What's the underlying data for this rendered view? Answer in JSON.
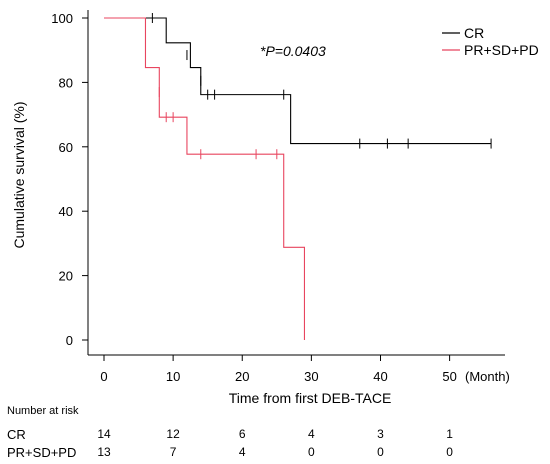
{
  "chart_data": {
    "type": "line",
    "subtype": "kaplan-meier",
    "ylabel": "Cumulative survival (%)",
    "xlabel": "Time from first DEB-TACE",
    "xunit": "(Month)",
    "xlim": [
      0,
      57
    ],
    "ylim": [
      0,
      100
    ],
    "xticks": [
      0,
      10,
      20,
      30,
      40,
      50
    ],
    "yticks": [
      0,
      20,
      40,
      60,
      80,
      100
    ],
    "annotation": "*P=0.0403",
    "legend_position": "top-right",
    "series": [
      {
        "name": "CR",
        "color": "#000000",
        "steps": [
          [
            0,
            100
          ],
          [
            9,
            92.3
          ],
          [
            12.5,
            84.6
          ],
          [
            14,
            76.2
          ],
          [
            27,
            61
          ],
          [
            56,
            61
          ]
        ],
        "censors": [
          [
            7,
            100
          ],
          [
            12,
            88.5
          ],
          [
            14,
            80.5
          ],
          [
            15,
            76.2
          ],
          [
            16,
            76.2
          ],
          [
            26,
            76.2
          ],
          [
            37,
            61
          ],
          [
            41,
            61
          ],
          [
            44,
            61
          ],
          [
            56,
            61
          ]
        ]
      },
      {
        "name": "PR+SD+PD",
        "color": "#e8455f",
        "steps": [
          [
            0,
            100
          ],
          [
            6,
            84.6
          ],
          [
            8,
            69.2
          ],
          [
            12,
            57.7
          ],
          [
            26,
            28.8
          ],
          [
            29,
            0
          ]
        ],
        "censors": [
          [
            8,
            77
          ],
          [
            9,
            69.2
          ],
          [
            10,
            69.2
          ],
          [
            14,
            57.7
          ],
          [
            22,
            57.7
          ],
          [
            25,
            57.7
          ]
        ]
      }
    ]
  },
  "risk_table": {
    "title": "Number at risk",
    "rows": [
      {
        "label": "CR",
        "values": [
          "14",
          "12",
          "6",
          "4",
          "3",
          "1"
        ]
      },
      {
        "label": "PR+SD+PD",
        "values": [
          "13",
          "7",
          "4",
          "0",
          "0",
          "0"
        ]
      }
    ]
  }
}
